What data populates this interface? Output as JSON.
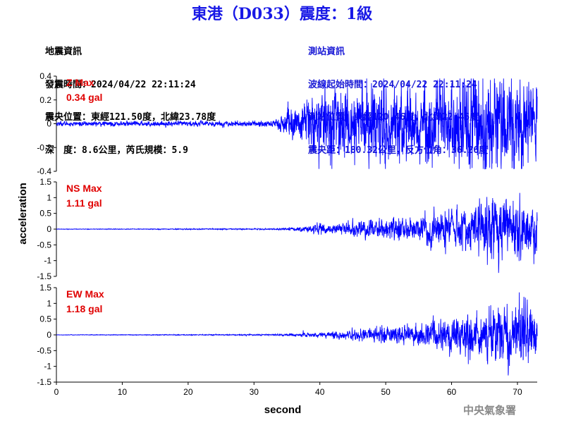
{
  "header": {
    "title": "東港（D033）震度：1級"
  },
  "earthquake_info": {
    "heading": "地震資訊",
    "time": "發震時間：2024/04/22 22:11:24",
    "epicenter": "震央位置：東經121.50度，北緯23.78度",
    "depth_mag": "深　度：8.6公里，芮氏規模：5.9"
  },
  "station_info": {
    "heading": "測站資訊",
    "wave_start": "波線起始時間：2024/04/22 22:11:24",
    "location": "測站位置：東經120.46度，北緯22.46度",
    "distance": "震央距：180.32公里，反方位角：36.26度"
  },
  "footer": {
    "agency": "中央氣象署"
  },
  "colors": {
    "title": "#1818e6",
    "trace": "#0000ff",
    "max_label": "#e00000",
    "station_text": "#1a1ad6",
    "agency": "#8a8a8a"
  },
  "chart_data": {
    "type": "line",
    "xlabel": "second",
    "ylabel": "acceleration",
    "xlim": [
      0,
      73
    ],
    "xticks": [
      0,
      10,
      20,
      30,
      40,
      50,
      60,
      70
    ],
    "panels": [
      {
        "component": "Z",
        "label": "Z Max",
        "max_text": "0.34 gal",
        "ylim": [
          -0.4,
          0.4
        ],
        "yticks": [
          -0.4,
          -0.2,
          0,
          0.2,
          0.4
        ],
        "ytick_labels": [
          "-0.4",
          "-0.2",
          "0",
          "0.2",
          "0.4"
        ],
        "envelope": [
          [
            0,
            0.01
          ],
          [
            30,
            0.012
          ],
          [
            33,
            0.02
          ],
          [
            35,
            0.06
          ],
          [
            38,
            0.11
          ],
          [
            40,
            0.14
          ],
          [
            45,
            0.16
          ],
          [
            50,
            0.18
          ],
          [
            55,
            0.17
          ],
          [
            60,
            0.18
          ],
          [
            65,
            0.22
          ],
          [
            70,
            0.2
          ],
          [
            73,
            0.18
          ]
        ],
        "peaks": [
          [
            62.7,
            -0.34
          ],
          [
            62.3,
            0.27
          ],
          [
            67,
            0.25
          ],
          [
            70,
            0.24
          ]
        ]
      },
      {
        "component": "NS",
        "label": "NS Max",
        "max_text": "1.11 gal",
        "ylim": [
          -1.5,
          1.5
        ],
        "yticks": [
          -1.5,
          -1,
          -0.5,
          0,
          0.5,
          1,
          1.5
        ],
        "ytick_labels": [
          "-1.5",
          "-1",
          "-0.5",
          "0",
          "0.5",
          "1",
          "1.5"
        ],
        "envelope": [
          [
            0,
            0.004
          ],
          [
            33,
            0.01
          ],
          [
            36,
            0.03
          ],
          [
            40,
            0.08
          ],
          [
            45,
            0.12
          ],
          [
            50,
            0.2
          ],
          [
            55,
            0.22
          ],
          [
            60,
            0.3
          ],
          [
            63,
            0.4
          ],
          [
            66,
            0.55
          ],
          [
            70,
            0.45
          ],
          [
            72,
            0.45
          ],
          [
            73,
            0.35
          ]
        ],
        "peaks": [
          [
            72.5,
            -1.11
          ],
          [
            66.7,
            0.8
          ],
          [
            65.7,
            0.68
          ],
          [
            68.5,
            -0.7
          ],
          [
            71.5,
            0.45
          ]
        ]
      },
      {
        "component": "EW",
        "label": "EW Max",
        "max_text": "1.18 gal",
        "ylim": [
          -1.5,
          1.5
        ],
        "yticks": [
          -1.5,
          -1,
          -0.5,
          0,
          0.5,
          1,
          1.5
        ],
        "ytick_labels": [
          "-1.5",
          "-1",
          "-0.5",
          "0",
          "0.5",
          "1",
          "1.5"
        ],
        "envelope": [
          [
            0,
            0.004
          ],
          [
            33,
            0.01
          ],
          [
            36,
            0.025
          ],
          [
            40,
            0.05
          ],
          [
            45,
            0.08
          ],
          [
            50,
            0.14
          ],
          [
            55,
            0.18
          ],
          [
            60,
            0.3
          ],
          [
            64,
            0.4
          ],
          [
            68,
            0.5
          ],
          [
            71,
            0.55
          ],
          [
            73,
            0.4
          ]
        ],
        "peaks": [
          [
            71.2,
            1.18
          ],
          [
            70.2,
            0.8
          ],
          [
            62.8,
            -0.8
          ],
          [
            68.5,
            -0.78
          ],
          [
            72.8,
            -0.5
          ]
        ]
      }
    ]
  }
}
